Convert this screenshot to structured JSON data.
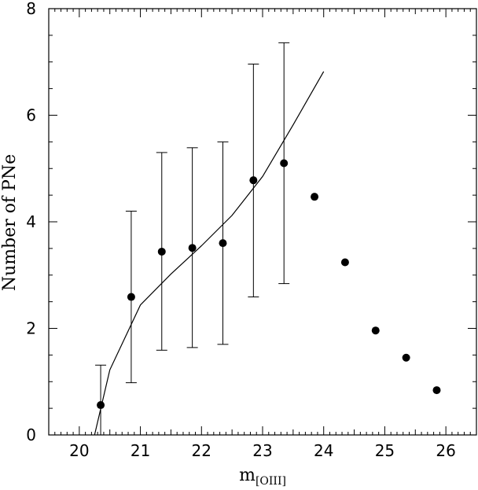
{
  "chart_data": {
    "type": "scatter",
    "title": "",
    "xlabel": {
      "main": "m",
      "sub": "[OIII]"
    },
    "ylabel": "Number of PNe",
    "xlim": [
      19.5,
      26.5
    ],
    "ylim": [
      0,
      8
    ],
    "xticks": [
      20,
      21,
      22,
      23,
      24,
      25,
      26
    ],
    "yticks": [
      0,
      2,
      4,
      6,
      8
    ],
    "grid": false,
    "legend": "none",
    "colors": {
      "axis": "#000000",
      "points": "#000000",
      "line": "#000000"
    },
    "series": [
      {
        "kind": "points",
        "x": [
          20.35,
          20.85,
          21.35,
          21.85,
          22.35,
          22.85,
          23.35,
          23.85,
          24.35,
          24.85,
          25.35,
          25.85
        ],
        "y": [
          0.56,
          2.59,
          3.44,
          3.51,
          3.6,
          4.78,
          5.1,
          4.47,
          3.24,
          1.96,
          1.45,
          0.84
        ]
      },
      {
        "kind": "errorbars",
        "x": [
          20.35,
          20.85,
          21.35,
          21.85,
          22.35,
          22.85,
          23.35
        ],
        "ylow": [
          0.0,
          0.98,
          1.59,
          1.64,
          1.7,
          2.59,
          2.84
        ],
        "yhigh": [
          1.31,
          4.2,
          5.3,
          5.39,
          5.5,
          6.96,
          7.36
        ],
        "dash": {
          "x": [
            19.85,
            20.15
          ],
          "y": 0
        }
      },
      {
        "kind": "line",
        "x": [
          20.25,
          20.5,
          21.0,
          21.5,
          22.0,
          22.5,
          23.0,
          23.5,
          24.0
        ],
        "y": [
          0.0,
          1.22,
          2.44,
          3.02,
          3.55,
          4.12,
          4.85,
          5.82,
          6.82
        ]
      }
    ]
  }
}
